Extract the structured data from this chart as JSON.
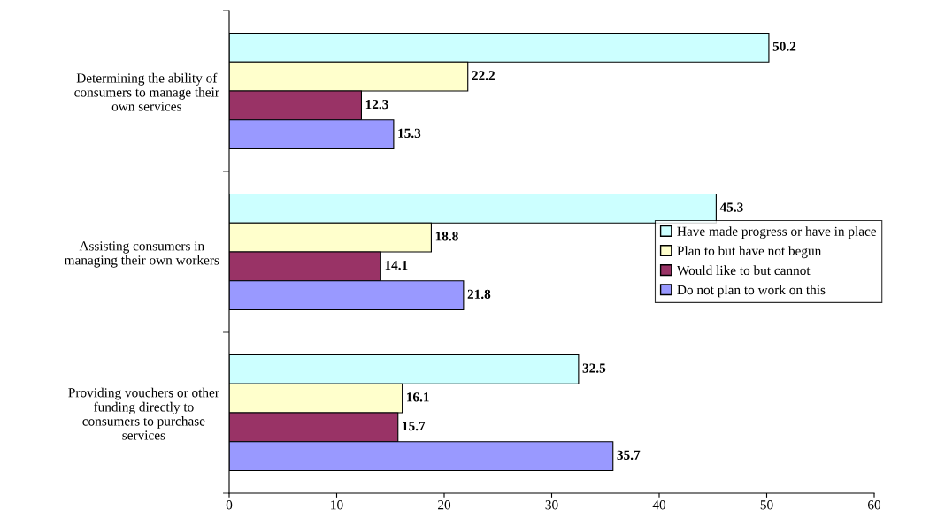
{
  "chart_data": {
    "type": "bar",
    "orientation": "horizontal",
    "categories": [
      "Determining the ability of\nconsumers to manage their\nown services",
      "Assisting consumers in\nmanaging their own workers",
      "Providing vouchers or other\nfunding directly to\nconsumers to purchase\nservices"
    ],
    "series": [
      {
        "name": "Have made progress or have in place",
        "color": "#ccffff",
        "values": [
          50.2,
          45.3,
          32.5
        ]
      },
      {
        "name": "Plan to but have not begun",
        "color": "#ffffcc",
        "values": [
          22.2,
          18.8,
          16.1
        ]
      },
      {
        "name": "Would like to but cannot",
        "color": "#993366",
        "values": [
          12.3,
          14.1,
          15.7
        ]
      },
      {
        "name": "Do not plan to work on this",
        "color": "#9999ff",
        "values": [
          15.3,
          21.8,
          35.7
        ]
      }
    ],
    "xlim": [
      0,
      60
    ],
    "xticks": [
      0,
      10,
      20,
      30,
      40,
      50,
      60
    ],
    "grid": false,
    "legend": "right",
    "data_labels": true
  }
}
